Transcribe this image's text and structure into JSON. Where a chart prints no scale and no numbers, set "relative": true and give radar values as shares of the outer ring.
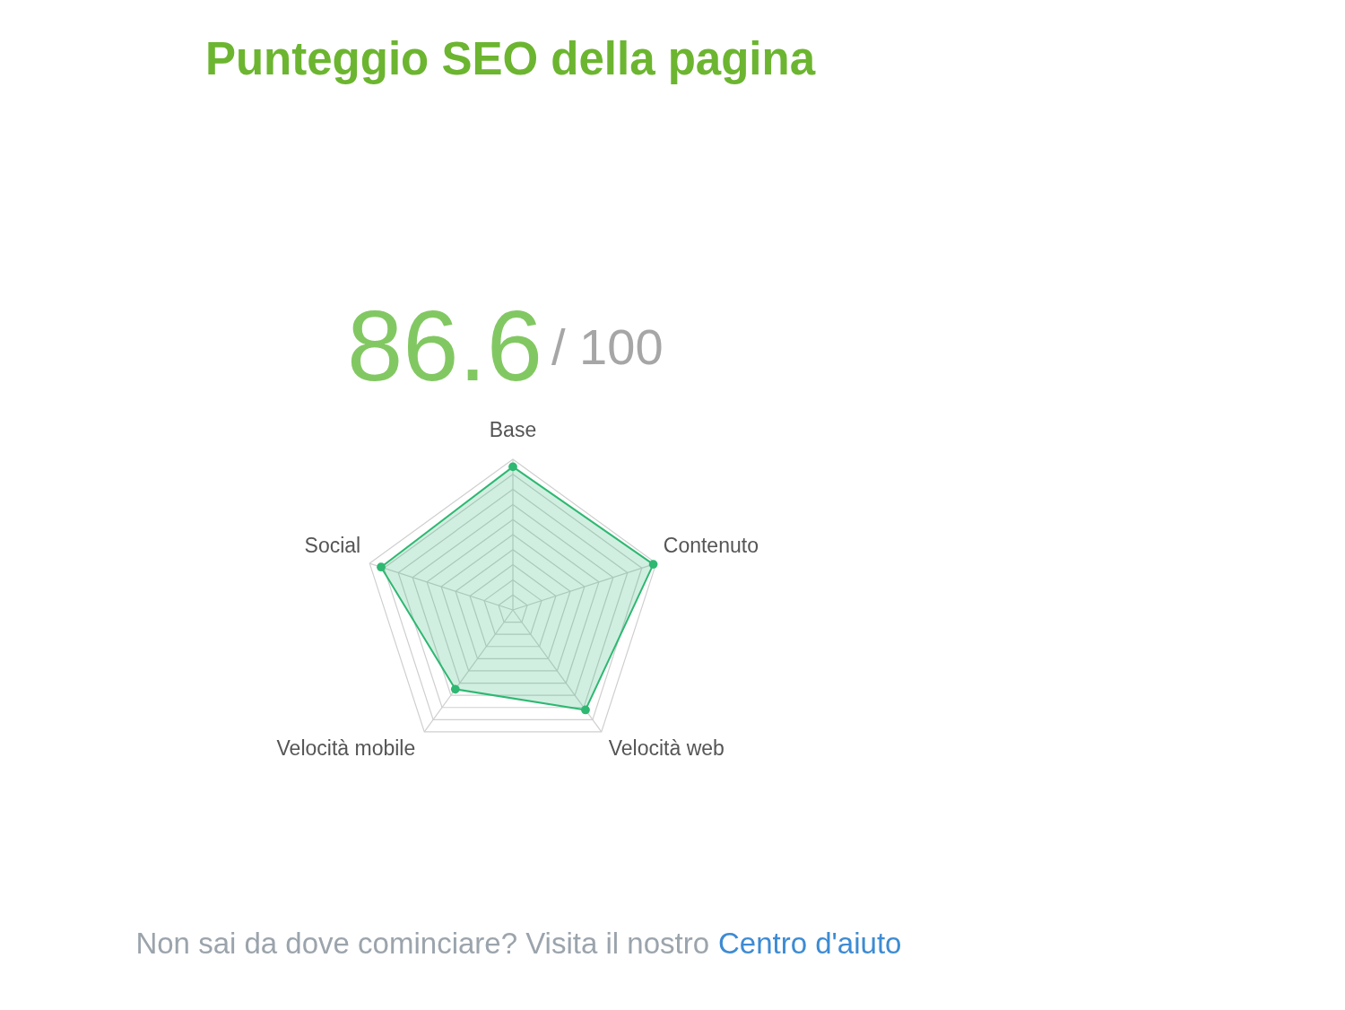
{
  "chart_data": {
    "type": "radar",
    "title": "Punteggio SEO della pagina",
    "categories": [
      "Base",
      "Contenuto",
      "Velocità web",
      "Velocità mobile",
      "Social"
    ],
    "relative": true,
    "series": [
      {
        "color": "#2eb872",
        "values": [
          0.95,
          0.98,
          0.82,
          0.65,
          0.92
        ]
      }
    ],
    "grid": true,
    "marker": "circle",
    "annotations": [
      "86.6",
      "/ 100",
      "Non sai da dove cominciare? Visita il nostro",
      "Centro d'aiuto"
    ]
  }
}
